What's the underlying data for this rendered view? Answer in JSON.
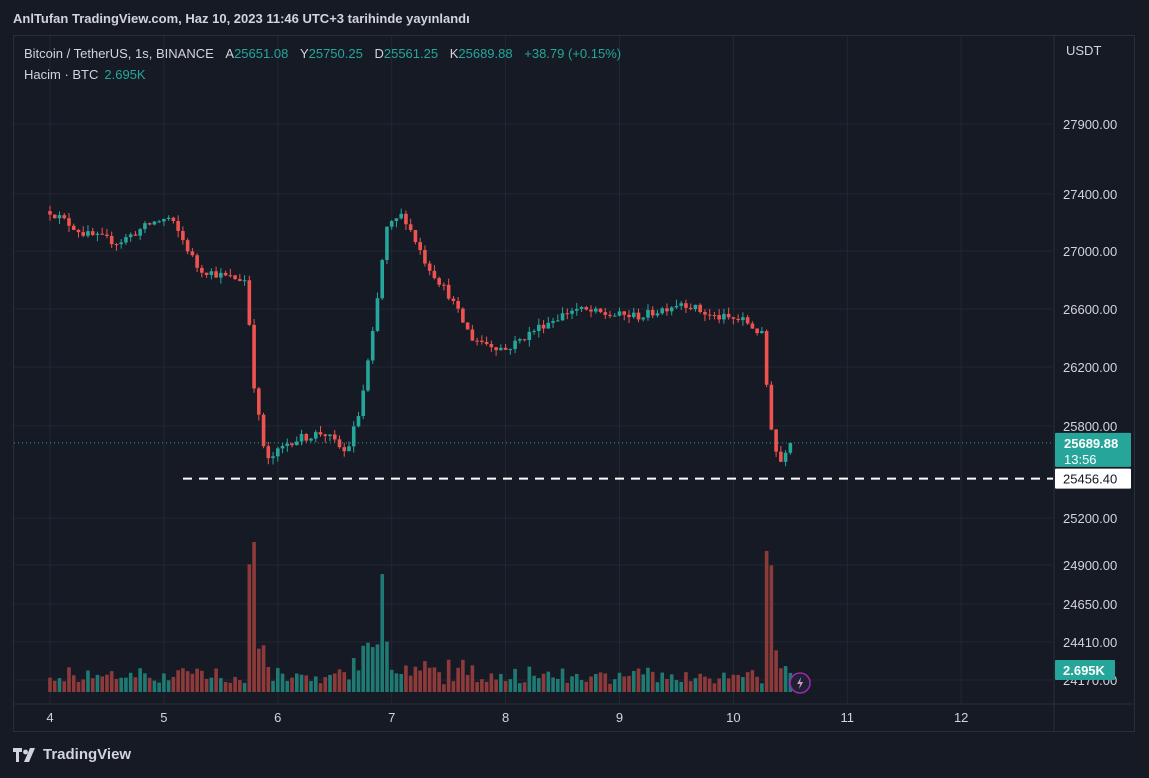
{
  "header": {
    "publish_text": "AnlTufan TradingView.com, Haz 10, 2023 11:46 UTC+3 tarihinde yayınlandı"
  },
  "legend": {
    "symbol": "Bitcoin / TetherUS, 1s, BINANCE",
    "open_key": "A",
    "open": "25651.08",
    "high_key": "Y",
    "high": "25750.25",
    "low_key": "D",
    "low": "25561.25",
    "close_key": "K",
    "close": "25689.88",
    "change": "+38.79 (+0.15%)",
    "volume_label": "Hacim · BTC",
    "volume_value": "2.695K"
  },
  "axis": {
    "unit": "USDT"
  },
  "footer": {
    "brand": "TradingView"
  },
  "colors": {
    "up": "#26a69a",
    "down": "#ef5350",
    "vol_up": "#1f7a73",
    "vol_down": "#8f3a3a",
    "background": "#161a25",
    "grid": "#232733"
  },
  "chart_data": {
    "type": "candlestick",
    "price_axis": {
      "ticks": [
        "27900.00",
        "27400.00",
        "27000.00",
        "26600.00",
        "26200.00",
        "25800.00",
        "25200.00",
        "24900.00",
        "24650.00",
        "24410.00",
        "24170.00"
      ],
      "tick_values": [
        27900,
        27400,
        27000,
        26600,
        26200,
        25800,
        25200,
        24900,
        24650,
        24410,
        24170
      ]
    },
    "time_axis": {
      "ticks": [
        "4",
        "5",
        "6",
        "7",
        "8",
        "9",
        "10",
        "11",
        "12"
      ]
    },
    "last_price": {
      "label": "25689.88",
      "countdown": "13:56",
      "color": "#26a69a"
    },
    "horizontal_line": {
      "label": "25456.40",
      "value": 25456.4,
      "style": "dashed",
      "color": "#ffffff"
    },
    "volume_last": {
      "label": "2.695K",
      "color": "#26a69a"
    },
    "anchors": [
      {
        "t": 0.0,
        "p": 27280
      },
      {
        "t": 0.3,
        "p": 27120
      },
      {
        "t": 0.6,
        "p": 27060
      },
      {
        "t": 0.9,
        "p": 27200
      },
      {
        "t": 1.05,
        "p": 27230
      },
      {
        "t": 1.15,
        "p": 27100
      },
      {
        "t": 1.3,
        "p": 26880
      },
      {
        "t": 1.55,
        "p": 26820
      },
      {
        "t": 1.72,
        "p": 26800
      },
      {
        "t": 1.8,
        "p": 26000
      },
      {
        "t": 1.9,
        "p": 25560
      },
      {
        "t": 2.1,
        "p": 25700
      },
      {
        "t": 2.4,
        "p": 25760
      },
      {
        "t": 2.6,
        "p": 25620
      },
      {
        "t": 2.72,
        "p": 25900
      },
      {
        "t": 2.85,
        "p": 26500
      },
      {
        "t": 2.95,
        "p": 27150
      },
      {
        "t": 3.1,
        "p": 27260
      },
      {
        "t": 3.3,
        "p": 26920
      },
      {
        "t": 3.5,
        "p": 26700
      },
      {
        "t": 3.7,
        "p": 26400
      },
      {
        "t": 4.0,
        "p": 26320
      },
      {
        "t": 4.3,
        "p": 26480
      },
      {
        "t": 4.6,
        "p": 26600
      },
      {
        "t": 4.9,
        "p": 26560
      },
      {
        "t": 5.2,
        "p": 26550
      },
      {
        "t": 5.55,
        "p": 26650
      },
      {
        "t": 5.8,
        "p": 26550
      },
      {
        "t": 6.1,
        "p": 26520
      },
      {
        "t": 6.25,
        "p": 26420
      },
      {
        "t": 6.32,
        "p": 25850
      },
      {
        "t": 6.4,
        "p": 25540
      },
      {
        "t": 6.48,
        "p": 25689.88
      }
    ],
    "range": {
      "t_end": 6.48,
      "candles_per_day": 24
    }
  }
}
